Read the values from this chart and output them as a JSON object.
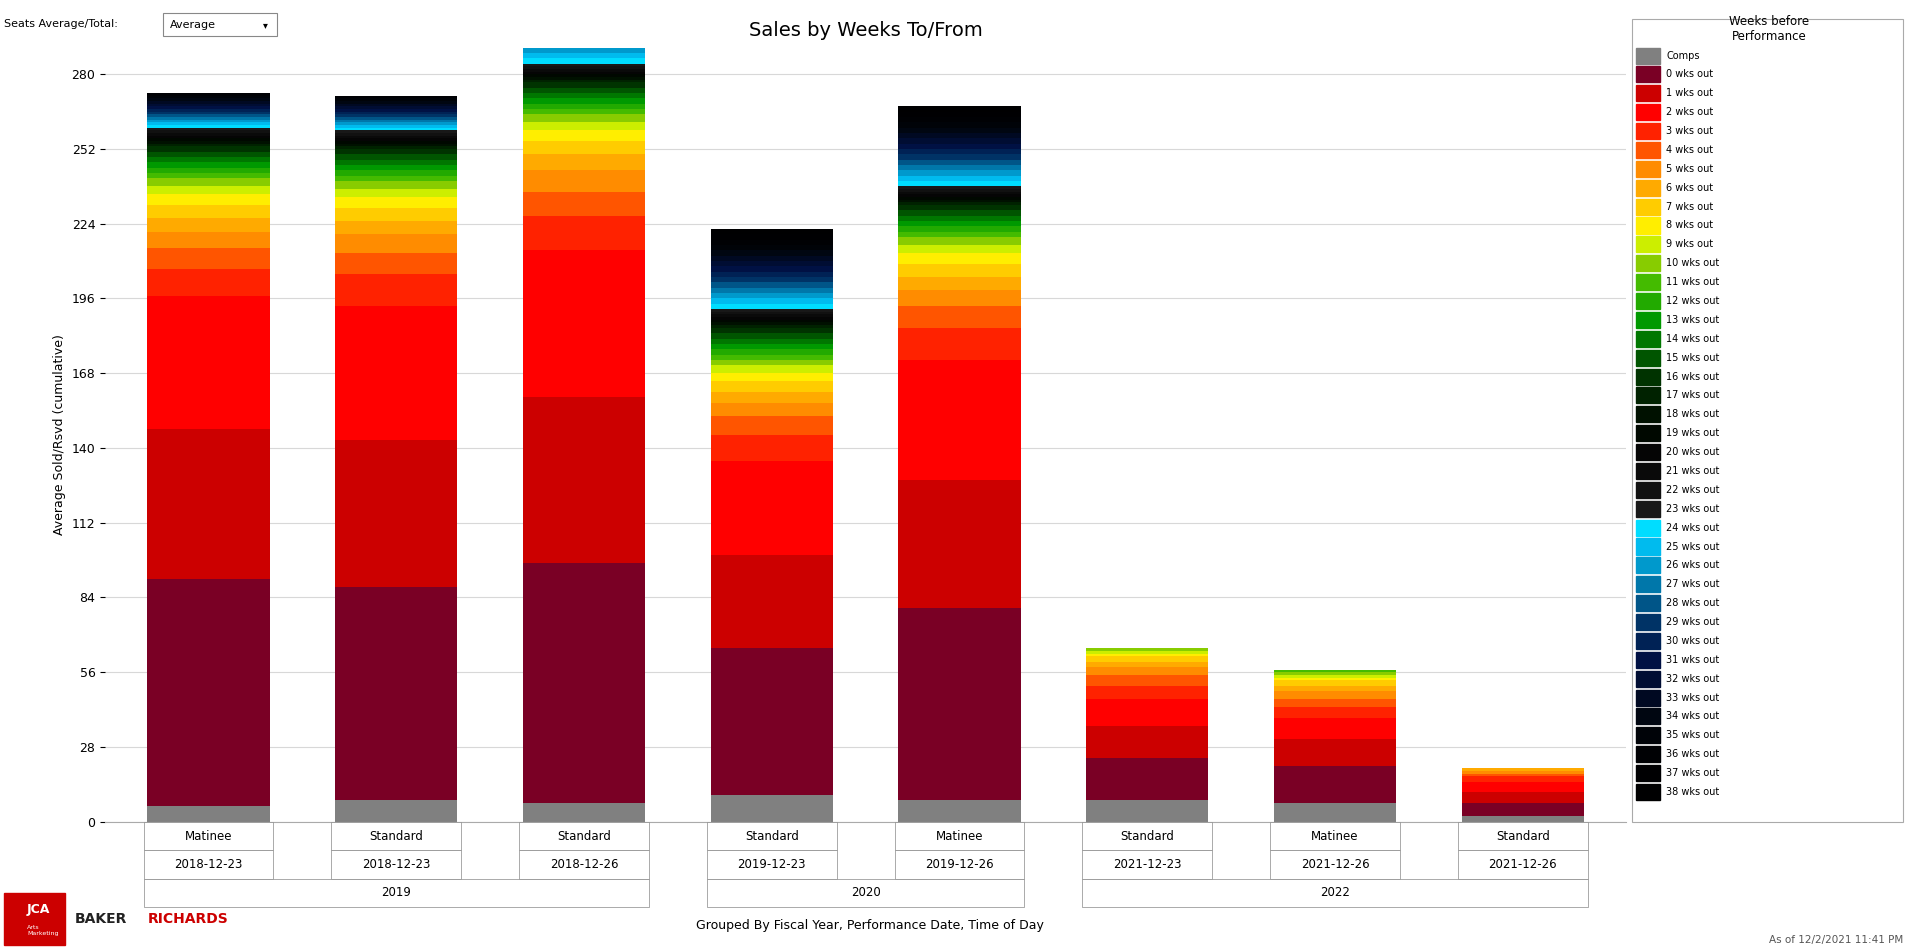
{
  "title": "Sales by Weeks To/From",
  "ylabel": "Average Sold/Rsvd (cumulative)",
  "xlabel_bottom": "Grouped By Fiscal Year, Performance Date, Time of Day",
  "ylim": [
    0,
    290
  ],
  "yticks": [
    0,
    28,
    56,
    84,
    112,
    140,
    168,
    196,
    224,
    252,
    280
  ],
  "bar_timeofday": [
    "Matinee",
    "Standard",
    "Standard",
    "Standard",
    "Matinee",
    "Standard",
    "Matinee",
    "Standard"
  ],
  "bar_dates": [
    "2018-12-23",
    "2018-12-23",
    "2018-12-26",
    "2019-12-23",
    "2019-12-26",
    "2021-12-23",
    "2021-12-26",
    "2021-12-26"
  ],
  "year_groups": [
    {
      "label": "2019",
      "start": 0,
      "end": 2
    },
    {
      "label": "2020",
      "start": 3,
      "end": 4
    },
    {
      "label": "2022",
      "start": 5,
      "end": 7
    }
  ],
  "seg_colors": [
    "#808080",
    "#7a0025",
    "#cc0000",
    "#ff0000",
    "#ff2200",
    "#ff5500",
    "#ff8c00",
    "#ffaa00",
    "#ffcc00",
    "#ffee00",
    "#ccee00",
    "#88cc00",
    "#44bb00",
    "#22aa00",
    "#009900",
    "#007700",
    "#005500",
    "#003300",
    "#002200",
    "#001100",
    "#000800",
    "#050505",
    "#0a0a0a",
    "#111111",
    "#181818",
    "#00ddff",
    "#00bbee",
    "#0099cc",
    "#0077aa",
    "#005588",
    "#003366",
    "#002255",
    "#001144",
    "#000d33",
    "#000922",
    "#000611",
    "#000308",
    "#000104",
    "#000002",
    "#000001"
  ],
  "seg_labels": [
    "Comps",
    "0 wks out",
    "1 wks out",
    "2 wks out",
    "3 wks out",
    "4 wks out",
    "5 wks out",
    "6 wks out",
    "7 wks out",
    "8 wks out",
    "9 wks out",
    "10 wks out",
    "11 wks out",
    "12 wks out",
    "13 wks out",
    "14 wks out",
    "15 wks out",
    "16 wks out",
    "17 wks out",
    "18 wks out",
    "19 wks out",
    "20 wks out",
    "21 wks out",
    "22 wks out",
    "23 wks out",
    "24 wks out",
    "25 wks out",
    "26 wks out",
    "27 wks out",
    "28 wks out",
    "29 wks out",
    "30 wks out",
    "31 wks out",
    "32 wks out",
    "33 wks out",
    "34 wks out",
    "35 wks out",
    "36 wks out",
    "37 wks out",
    "38 wks out"
  ],
  "bar_data": [
    [
      6,
      85,
      56,
      50,
      10,
      8,
      6,
      5,
      5,
      4,
      3,
      3,
      2,
      2,
      2,
      2,
      2,
      2,
      1,
      1,
      1,
      1,
      1,
      1,
      1,
      1,
      1,
      1,
      1,
      1,
      1,
      1,
      1,
      1,
      1,
      1,
      1,
      1,
      0,
      0
    ],
    [
      8,
      80,
      55,
      50,
      12,
      8,
      7,
      5,
      5,
      4,
      3,
      3,
      2,
      2,
      2,
      2,
      2,
      2,
      1,
      1,
      1,
      1,
      1,
      1,
      1,
      1,
      1,
      1,
      1,
      1,
      1,
      1,
      1,
      1,
      1,
      1,
      1,
      1,
      0,
      0
    ],
    [
      7,
      90,
      62,
      55,
      13,
      9,
      8,
      6,
      5,
      4,
      3,
      3,
      2,
      2,
      2,
      2,
      2,
      2,
      1,
      1,
      1,
      1,
      1,
      1,
      1,
      2,
      2,
      2,
      1,
      1,
      1,
      1,
      1,
      1,
      1,
      1,
      1,
      1,
      0,
      0
    ],
    [
      10,
      55,
      35,
      35,
      10,
      7,
      5,
      4,
      4,
      3,
      3,
      2,
      2,
      2,
      2,
      2,
      2,
      2,
      1,
      1,
      1,
      1,
      1,
      1,
      1,
      2,
      2,
      2,
      2,
      2,
      2,
      2,
      2,
      2,
      2,
      2,
      2,
      2,
      2,
      2
    ],
    [
      8,
      72,
      48,
      45,
      12,
      8,
      6,
      5,
      5,
      4,
      3,
      3,
      2,
      2,
      2,
      2,
      2,
      2,
      1,
      1,
      1,
      1,
      1,
      1,
      1,
      2,
      2,
      2,
      2,
      2,
      2,
      2,
      2,
      2,
      2,
      2,
      2,
      2,
      2,
      2
    ],
    [
      8,
      16,
      12,
      10,
      5,
      4,
      3,
      2,
      2,
      1,
      1,
      1,
      0,
      0,
      0,
      0,
      0,
      0,
      0,
      0,
      0,
      0,
      0,
      0,
      0,
      0,
      0,
      0,
      0,
      0,
      0,
      0,
      0,
      0,
      0,
      0,
      0,
      0,
      0,
      0
    ],
    [
      7,
      14,
      10,
      8,
      4,
      3,
      3,
      2,
      2,
      1,
      1,
      1,
      1,
      0,
      0,
      0,
      0,
      0,
      0,
      0,
      0,
      0,
      0,
      0,
      0,
      0,
      0,
      0,
      0,
      0,
      0,
      0,
      0,
      0,
      0,
      0,
      0,
      0,
      0,
      0
    ],
    [
      2,
      5,
      4,
      4,
      2,
      1,
      1,
      1,
      0,
      0,
      0,
      0,
      0,
      0,
      0,
      0,
      0,
      0,
      0,
      0,
      0,
      0,
      0,
      0,
      0,
      0,
      0,
      0,
      0,
      0,
      0,
      0,
      0,
      0,
      0,
      0,
      0,
      0,
      0,
      0
    ]
  ],
  "background_color": "#ffffff",
  "grid_color": "#d8d8d8",
  "bar_width": 0.65,
  "title_fontsize": 14,
  "axis_fontsize": 9,
  "tick_fontsize": 9,
  "legend_title": "Weeks before\nPerformance",
  "header_label": "Seats Average/Total:",
  "header_value": "Average",
  "footer_text": "As of 12/2/2021 11:41 PM"
}
